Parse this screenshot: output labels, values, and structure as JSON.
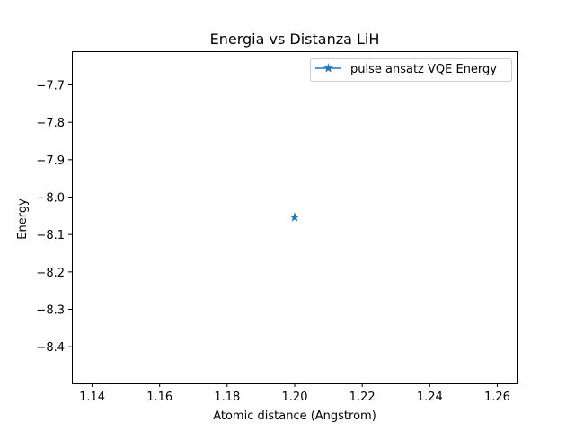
{
  "chart_data": {
    "type": "line",
    "title": "Energia vs Distanza LiH",
    "xlabel": "Atomic distance (Angstrom)",
    "ylabel": "Energy",
    "xlim": [
      1.134,
      1.266
    ],
    "ylim": [
      -8.498,
      -7.61
    ],
    "x_ticks": [
      1.14,
      1.16,
      1.18,
      1.2,
      1.22,
      1.24,
      1.26
    ],
    "x_tick_labels": [
      "1.14",
      "1.16",
      "1.18",
      "1.20",
      "1.22",
      "1.24",
      "1.26"
    ],
    "y_ticks": [
      -7.7,
      -7.8,
      -7.9,
      -8.0,
      -8.1,
      -8.2,
      -8.3,
      -8.4
    ],
    "y_tick_labels": [
      "−7.7",
      "−7.8",
      "−7.9",
      "−8.0",
      "−8.1",
      "−8.2",
      "−8.3",
      "−8.4"
    ],
    "grid": false,
    "legend_position": "top-right",
    "series": [
      {
        "name": "pulse ansatz VQE Energy",
        "color": "#1f77b4",
        "marker": "star",
        "x": [
          1.2
        ],
        "y": [
          -8.054
        ]
      }
    ]
  }
}
